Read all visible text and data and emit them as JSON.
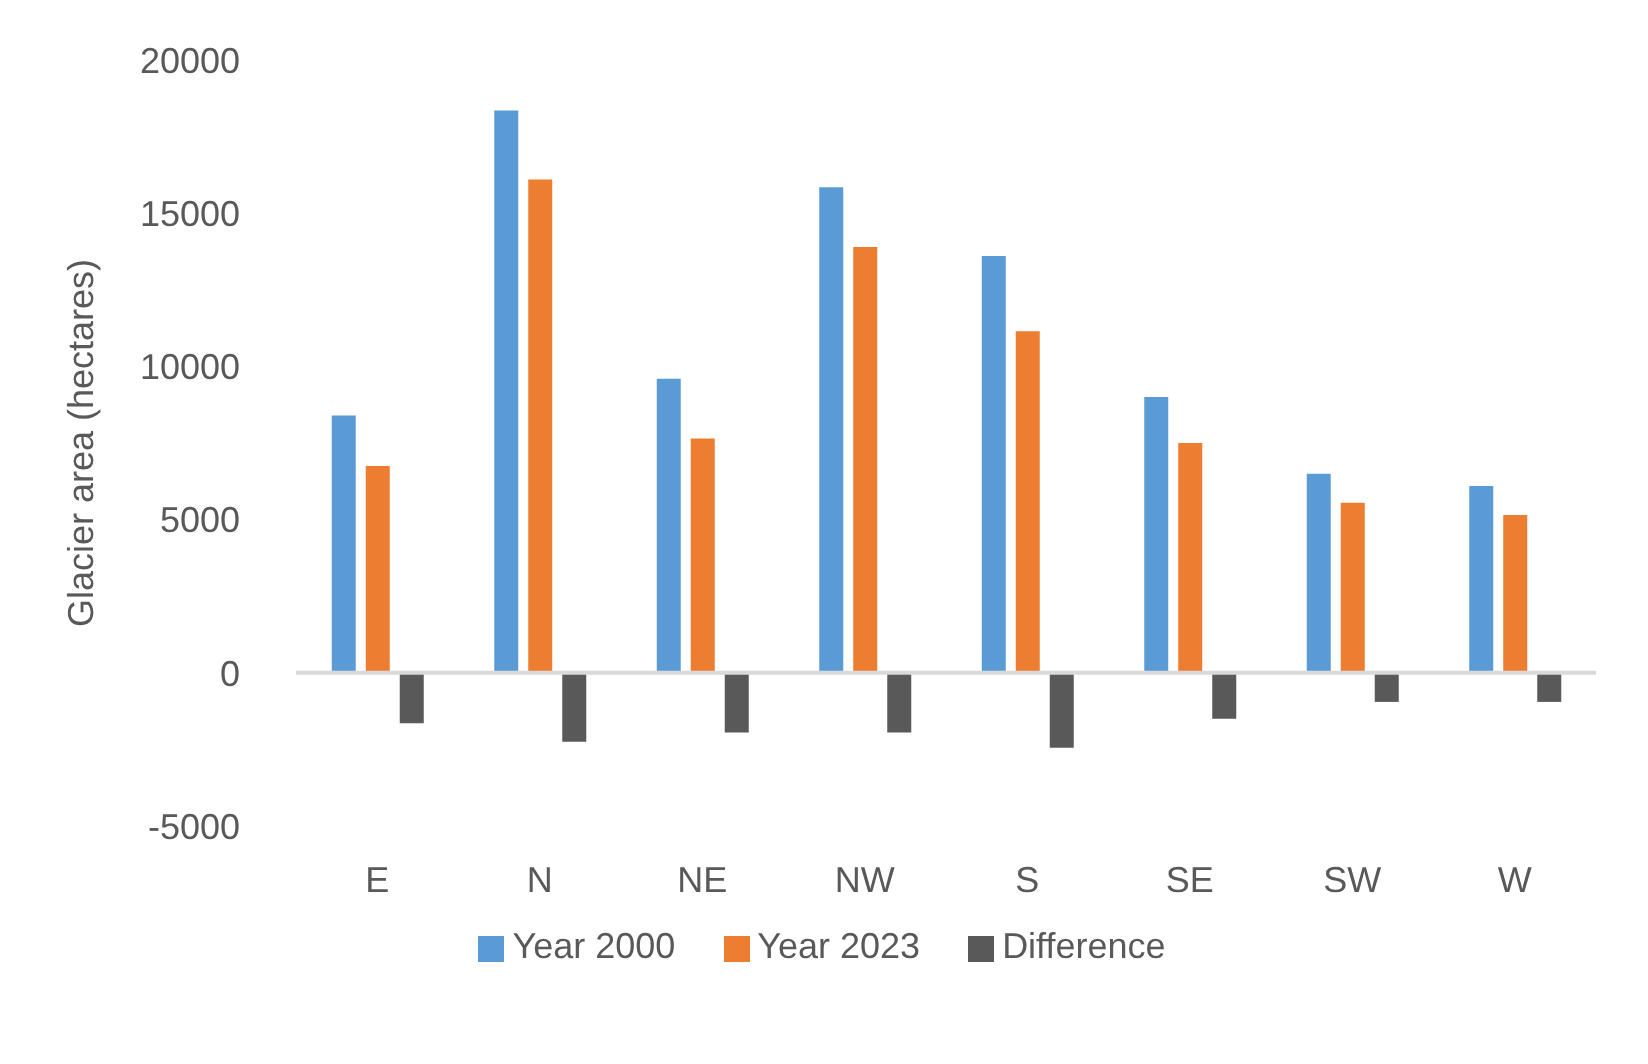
{
  "chart_data": {
    "type": "bar",
    "ylabel": "Glacier area (hectares)",
    "categories": [
      "E",
      "N",
      "NE",
      "NW",
      "S",
      "SE",
      "SW",
      "W"
    ],
    "series": [
      {
        "name": "Year 2000",
        "color": "#5b9bd5",
        "values": [
          8400,
          18350,
          9600,
          15850,
          13600,
          9000,
          6500,
          6100
        ]
      },
      {
        "name": "Year 2023",
        "color": "#ed7d31",
        "values": [
          6750,
          16100,
          7650,
          13900,
          11150,
          7500,
          5550,
          5150
        ]
      },
      {
        "name": "Difference",
        "color": "#595959",
        "values": [
          -1650,
          -2250,
          -1950,
          -1950,
          -2450,
          -1500,
          -950,
          -950
        ]
      }
    ],
    "ylim": [
      -5000,
      20000
    ],
    "yticks": [
      -5000,
      0,
      5000,
      10000,
      15000,
      20000
    ],
    "legend": "bottom"
  }
}
